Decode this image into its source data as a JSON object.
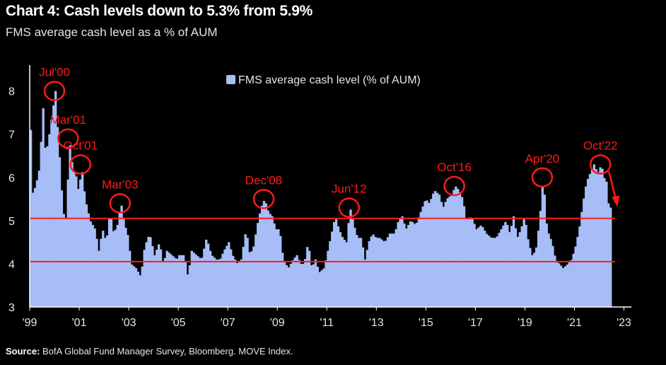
{
  "title": "Chart 4: Cash levels down to 5.3% from 5.9%",
  "subtitle": "FMS average cash level as a % of AUM",
  "source_label": "Source:",
  "source_text": "BofA Global Fund Manager Survey, Bloomberg. MOVE Index.",
  "colors": {
    "bar": "#a6bdf7",
    "annotation": "#ff1a1a",
    "axis": "#ffffff",
    "background": "#000000"
  },
  "chart_data": {
    "type": "bar",
    "legend": "FMS average cash level (% of AUM)",
    "ylim": [
      3,
      8.6
    ],
    "yticks": [
      3,
      4,
      5,
      6,
      7,
      8
    ],
    "xrange": [
      1999.0,
      2023.3
    ],
    "xticks": [
      "'99",
      "'01",
      "'03",
      "'05",
      "'07",
      "'09",
      "'11",
      "'13",
      "'15",
      "'17",
      "'19",
      "'21",
      "'23"
    ],
    "xtick_years": [
      1999,
      2001,
      2003,
      2005,
      2007,
      2009,
      2011,
      2013,
      2015,
      2017,
      2019,
      2021,
      2023
    ],
    "reference_lines": [
      5.05,
      4.05
    ],
    "series": [
      {
        "name": "FMS average cash level (% of AUM)",
        "anchors": [
          [
            1999.0,
            7.1
          ],
          [
            1999.05,
            5.6
          ],
          [
            1999.2,
            5.8
          ],
          [
            1999.35,
            6.2
          ],
          [
            1999.5,
            7.6
          ],
          [
            1999.6,
            6.5
          ],
          [
            1999.75,
            7.0
          ],
          [
            1999.9,
            7.6
          ],
          [
            2000.0,
            8.0
          ],
          [
            2000.1,
            7.0
          ],
          [
            2000.2,
            6.2
          ],
          [
            2000.3,
            5.2
          ],
          [
            2000.45,
            5.0
          ],
          [
            2000.55,
            6.9
          ],
          [
            2000.7,
            6.2
          ],
          [
            2000.85,
            6.0
          ],
          [
            2000.95,
            5.6
          ],
          [
            2001.05,
            6.3
          ],
          [
            2001.2,
            5.5
          ],
          [
            2001.4,
            5.0
          ],
          [
            2001.6,
            4.8
          ],
          [
            2001.75,
            4.3
          ],
          [
            2001.9,
            4.8
          ],
          [
            2002.05,
            4.5
          ],
          [
            2002.2,
            5.2
          ],
          [
            2002.35,
            4.7
          ],
          [
            2002.5,
            4.9
          ],
          [
            2002.65,
            5.4
          ],
          [
            2002.8,
            4.9
          ],
          [
            2002.95,
            4.6
          ],
          [
            2003.05,
            4.0
          ],
          [
            2003.25,
            3.9
          ],
          [
            2003.45,
            3.7
          ],
          [
            2003.6,
            4.4
          ],
          [
            2003.8,
            4.7
          ],
          [
            2004.0,
            4.2
          ],
          [
            2004.2,
            4.5
          ],
          [
            2004.35,
            4.0
          ],
          [
            2004.5,
            4.3
          ],
          [
            2004.7,
            4.2
          ],
          [
            2004.9,
            4.1
          ],
          [
            2005.0,
            4.2
          ],
          [
            2005.2,
            4.2
          ],
          [
            2005.35,
            3.7
          ],
          [
            2005.5,
            4.3
          ],
          [
            2005.7,
            4.2
          ],
          [
            2005.9,
            4.1
          ],
          [
            2006.1,
            4.6
          ],
          [
            2006.3,
            4.2
          ],
          [
            2006.5,
            4.1
          ],
          [
            2006.65,
            4.1
          ],
          [
            2006.8,
            4.3
          ],
          [
            2007.0,
            4.5
          ],
          [
            2007.15,
            4.2
          ],
          [
            2007.35,
            4.0
          ],
          [
            2007.5,
            4.1
          ],
          [
            2007.7,
            4.8
          ],
          [
            2007.85,
            4.2
          ],
          [
            2008.0,
            4.4
          ],
          [
            2008.15,
            4.9
          ],
          [
            2008.3,
            5.3
          ],
          [
            2008.45,
            5.5
          ],
          [
            2008.6,
            5.2
          ],
          [
            2008.75,
            5.1
          ],
          [
            2008.9,
            4.8
          ],
          [
            2009.05,
            4.8
          ],
          [
            2009.2,
            4.1
          ],
          [
            2009.4,
            3.9
          ],
          [
            2009.6,
            4.1
          ],
          [
            2009.75,
            4.2
          ],
          [
            2009.9,
            4.0
          ],
          [
            2010.05,
            4.0
          ],
          [
            2010.2,
            4.5
          ],
          [
            2010.35,
            3.9
          ],
          [
            2010.5,
            4.1
          ],
          [
            2010.65,
            3.8
          ],
          [
            2010.85,
            3.9
          ],
          [
            2011.0,
            4.3
          ],
          [
            2011.15,
            4.7
          ],
          [
            2011.3,
            5.1
          ],
          [
            2011.45,
            4.8
          ],
          [
            2011.6,
            4.6
          ],
          [
            2011.75,
            4.5
          ],
          [
            2011.9,
            5.3
          ],
          [
            2012.05,
            4.9
          ],
          [
            2012.2,
            4.6
          ],
          [
            2012.35,
            4.6
          ],
          [
            2012.5,
            4.1
          ],
          [
            2012.65,
            4.5
          ],
          [
            2012.8,
            4.7
          ],
          [
            2012.95,
            4.6
          ],
          [
            2013.1,
            4.6
          ],
          [
            2013.3,
            4.5
          ],
          [
            2013.5,
            4.7
          ],
          [
            2013.7,
            4.7
          ],
          [
            2013.85,
            5.0
          ],
          [
            2014.0,
            5.1
          ],
          [
            2014.15,
            4.8
          ],
          [
            2014.35,
            5.0
          ],
          [
            2014.55,
            4.9
          ],
          [
            2014.75,
            5.2
          ],
          [
            2014.95,
            5.5
          ],
          [
            2015.1,
            5.4
          ],
          [
            2015.3,
            5.7
          ],
          [
            2015.5,
            5.6
          ],
          [
            2015.65,
            5.3
          ],
          [
            2015.8,
            5.5
          ],
          [
            2016.0,
            5.6
          ],
          [
            2016.15,
            5.8
          ],
          [
            2016.3,
            5.7
          ],
          [
            2016.45,
            5.5
          ],
          [
            2016.6,
            5.0
          ],
          [
            2016.8,
            5.1
          ],
          [
            2017.0,
            4.8
          ],
          [
            2017.2,
            4.9
          ],
          [
            2017.4,
            4.7
          ],
          [
            2017.6,
            4.6
          ],
          [
            2017.8,
            4.6
          ],
          [
            2018.0,
            4.8
          ],
          [
            2018.2,
            5.0
          ],
          [
            2018.35,
            4.7
          ],
          [
            2018.5,
            5.1
          ],
          [
            2018.65,
            4.6
          ],
          [
            2018.8,
            4.8
          ],
          [
            2018.95,
            5.1
          ],
          [
            2019.1,
            4.5
          ],
          [
            2019.25,
            4.2
          ],
          [
            2019.4,
            4.3
          ],
          [
            2019.55,
            5.0
          ],
          [
            2019.7,
            6.0
          ],
          [
            2019.85,
            4.8
          ],
          [
            2020.05,
            4.5
          ],
          [
            2020.2,
            4.1
          ],
          [
            2020.35,
            4.0
          ],
          [
            2020.5,
            3.9
          ],
          [
            2020.7,
            4.0
          ],
          [
            2020.85,
            4.1
          ],
          [
            2021.0,
            4.4
          ],
          [
            2021.15,
            4.8
          ],
          [
            2021.3,
            5.4
          ],
          [
            2021.45,
            5.9
          ],
          [
            2021.6,
            6.1
          ],
          [
            2021.75,
            6.3
          ],
          [
            2021.9,
            6.1
          ],
          [
            2022.05,
            6.3
          ],
          [
            2022.15,
            6.0
          ],
          [
            2022.25,
            5.9
          ],
          [
            2022.35,
            5.3
          ],
          [
            2022.45,
            5.3
          ]
        ]
      }
    ],
    "annotations": [
      {
        "label": "Jul'00",
        "x": 2000.0,
        "y": 8.0
      },
      {
        "label": "Mar'01",
        "x": 2000.55,
        "y": 6.9
      },
      {
        "label": "Oct'01",
        "x": 2001.05,
        "y": 6.3
      },
      {
        "label": "Mar'03",
        "x": 2002.65,
        "y": 5.4
      },
      {
        "label": "Dec'08",
        "x": 2008.45,
        "y": 5.5
      },
      {
        "label": "Jun'12",
        "x": 2011.9,
        "y": 5.3
      },
      {
        "label": "Oct'16",
        "x": 2016.15,
        "y": 5.8
      },
      {
        "label": "Apr'20",
        "x": 2019.7,
        "y": 6.0
      },
      {
        "label": "Oct'22",
        "x": 2022.05,
        "y": 6.3
      }
    ]
  }
}
